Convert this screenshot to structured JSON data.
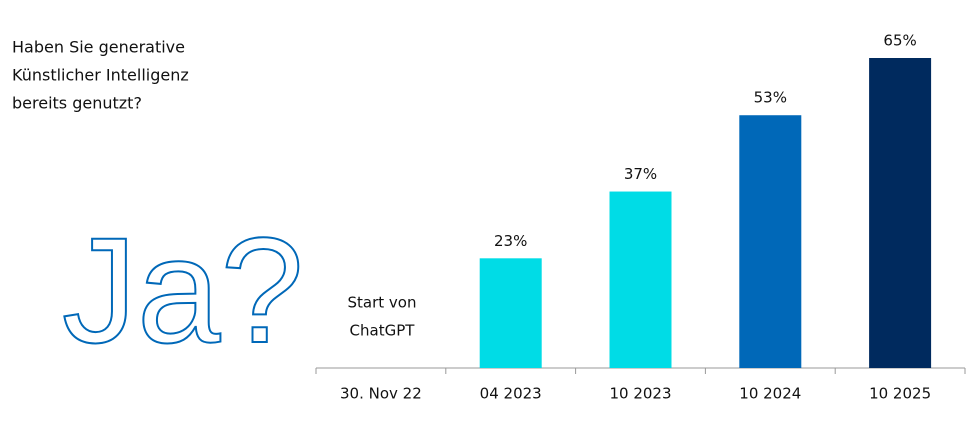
{
  "chart_data": {
    "type": "bar",
    "title_lines": [
      "Haben Sie generative",
      "Künstlicher Intelligenz",
      "bereits genutzt?"
    ],
    "emblem": "Ja?",
    "annotation_lines": [
      "Start von",
      "ChatGPT"
    ],
    "categories": [
      "30. Nov 22",
      "04 2023",
      "10 2023",
      "10 2024",
      "10 2025"
    ],
    "values": [
      null,
      23,
      37,
      53,
      65
    ],
    "value_labels": [
      null,
      "23%",
      "37%",
      "53%",
      "65%"
    ],
    "colors": [
      null,
      "#00dce6",
      "#00dce6",
      "#0068b8",
      "#002a5e"
    ]
  }
}
